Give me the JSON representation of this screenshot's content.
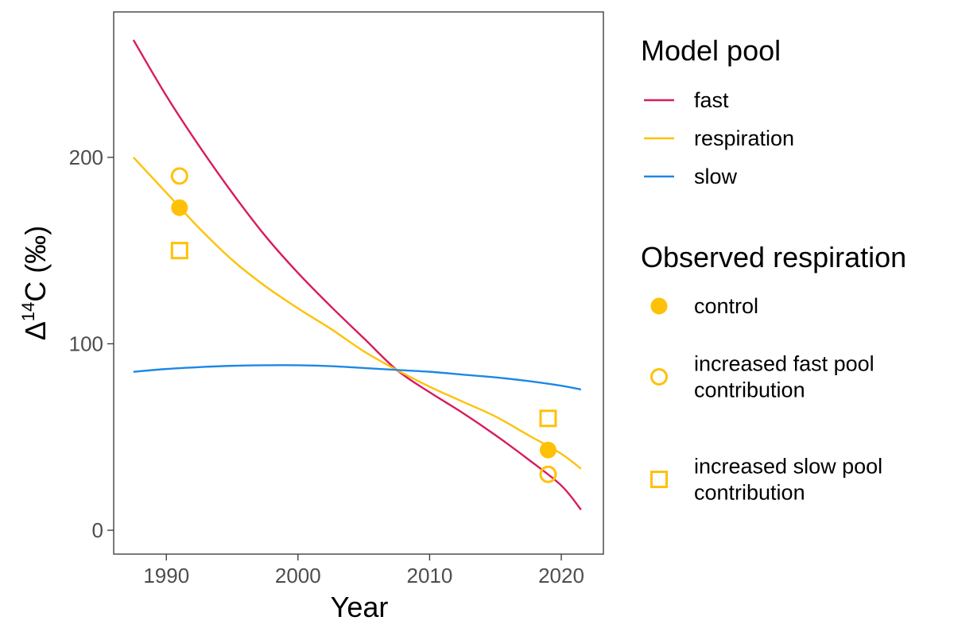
{
  "chart_data": {
    "type": "line",
    "xlabel": "Year",
    "ylabel": {
      "prefix": "Δ",
      "superscript": "14",
      "suffix": "C (‰)"
    },
    "xlim": [
      1986,
      2023.2
    ],
    "ylim": [
      -12.8,
      278
    ],
    "x_ticks": [
      1990,
      2000,
      2010,
      2020
    ],
    "y_ticks": [
      0,
      100,
      200
    ],
    "grid": false,
    "legend_placement": "right",
    "series": [
      {
        "name": "fast",
        "kind": "line",
        "color": "#d81b60",
        "x": [
          1987.5,
          1990,
          1992.5,
          1995,
          1997.5,
          2000,
          2002.5,
          2005,
          2007.5,
          2010,
          2012.5,
          2015,
          2017.5,
          2020,
          2021.5
        ],
        "y": [
          263,
          233,
          206,
          181,
          158,
          138,
          120,
          103,
          86,
          74,
          63,
          51,
          38,
          24,
          11
        ]
      },
      {
        "name": "respiration",
        "kind": "line",
        "color": "#ffc107",
        "x": [
          1987.5,
          1990,
          1992.5,
          1995,
          1997.5,
          2000,
          2002.5,
          2005,
          2007.5,
          2010,
          2012.5,
          2015,
          2017.5,
          2020,
          2021.5
        ],
        "y": [
          200,
          181,
          162,
          145,
          131,
          119,
          108,
          96,
          86,
          77,
          69,
          61,
          51,
          41,
          33
        ]
      },
      {
        "name": "slow",
        "kind": "line",
        "color": "#1e88e5",
        "x": [
          1987.5,
          1990,
          1992.5,
          1995,
          1997.5,
          2000,
          2002.5,
          2005,
          2007.5,
          2010,
          2012.5,
          2015,
          2017.5,
          2020,
          2021.5
        ],
        "y": [
          85,
          86.5,
          87.5,
          88.2,
          88.5,
          88.5,
          88,
          87,
          86,
          85,
          83.5,
          82,
          80,
          77.5,
          75.5
        ]
      }
    ],
    "points": [
      {
        "group": "control",
        "shape": "filled-circle",
        "color": "#ffc107",
        "x": [
          1991,
          2019
        ],
        "y": [
          173,
          43
        ]
      },
      {
        "group": "increased fast pool contribution",
        "shape": "open-circle",
        "color": "#ffc107",
        "x": [
          1991,
          2019
        ],
        "y": [
          190,
          30
        ]
      },
      {
        "group": "increased slow pool contribution",
        "shape": "open-square",
        "color": "#ffc107",
        "x": [
          1991,
          2019
        ],
        "y": [
          150,
          60
        ]
      }
    ],
    "legends": [
      {
        "title": "Model pool",
        "entries": [
          {
            "label_lines": [
              "fast"
            ],
            "symbol": "line",
            "color": "#d81b60"
          },
          {
            "label_lines": [
              "respiration"
            ],
            "symbol": "line",
            "color": "#ffc107"
          },
          {
            "label_lines": [
              "slow"
            ],
            "symbol": "line",
            "color": "#1e88e5"
          }
        ]
      },
      {
        "title": "Observed respiration",
        "entries": [
          {
            "label_lines": [
              "control"
            ],
            "symbol": "filled-circle",
            "color": "#ffc107"
          },
          {
            "label_lines": [
              "increased fast pool",
              "contribution"
            ],
            "symbol": "open-circle",
            "color": "#ffc107"
          },
          {
            "label_lines": [
              "increased slow pool",
              "contribution"
            ],
            "symbol": "open-square",
            "color": "#ffc107"
          }
        ]
      }
    ]
  }
}
